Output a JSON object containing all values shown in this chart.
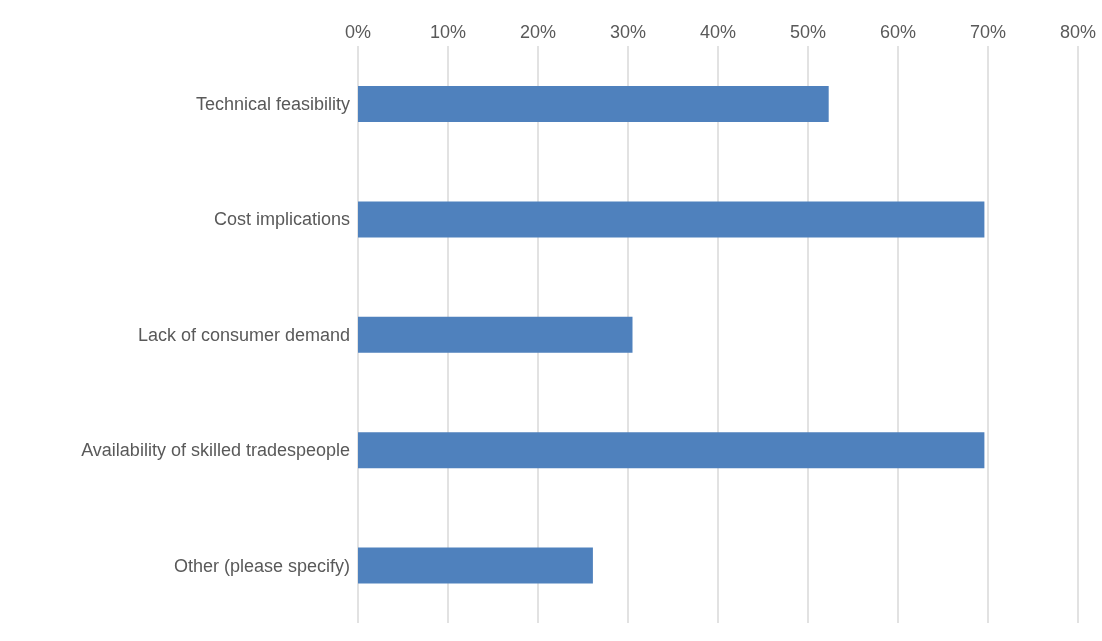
{
  "chart_data": {
    "type": "bar",
    "orientation": "horizontal",
    "categories": [
      "Technical feasibility",
      "Cost implications",
      "Lack of consumer demand",
      "Availability of skilled tradespeople",
      "Other (please specify)"
    ],
    "values": [
      52.3,
      69.6,
      30.5,
      69.6,
      26.1
    ],
    "color": "#4f81bd",
    "xlim": [
      0,
      80
    ],
    "xticks": [
      {
        "value": 0,
        "label": "0%"
      },
      {
        "value": 10,
        "label": "10%"
      },
      {
        "value": 20,
        "label": "20%"
      },
      {
        "value": 30,
        "label": "30%"
      },
      {
        "value": 40,
        "label": "40%"
      },
      {
        "value": 50,
        "label": "50%"
      },
      {
        "value": 60,
        "label": "60%"
      },
      {
        "value": 70,
        "label": "70%"
      },
      {
        "value": 80,
        "label": "80%"
      }
    ],
    "grid": "x"
  }
}
